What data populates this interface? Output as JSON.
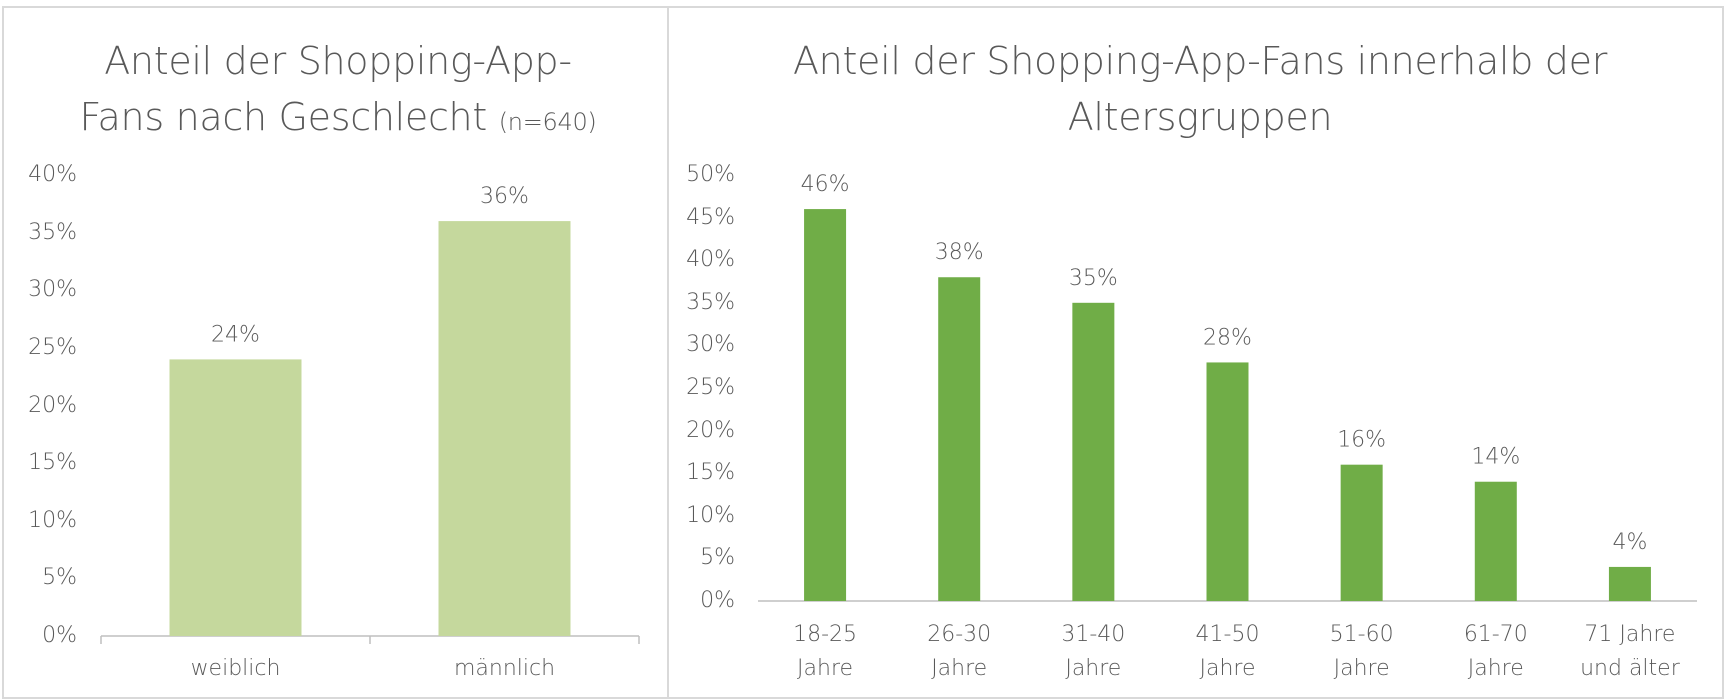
{
  "chart_data": [
    {
      "type": "bar",
      "title": "Anteil der Shopping-App-Fans nach Geschlecht",
      "note": "(n=640)",
      "categories": [
        "weiblich",
        "männlich"
      ],
      "values": [
        24,
        36
      ],
      "value_labels": [
        "24%",
        "36%"
      ],
      "color": "#c5d89d",
      "ylim": [
        0,
        40
      ],
      "yticks": [
        {
          "value": 0,
          "label": "0%"
        },
        {
          "value": 5,
          "label": "5%"
        },
        {
          "value": 10,
          "label": "10%"
        },
        {
          "value": 15,
          "label": "15%"
        },
        {
          "value": 20,
          "label": "20%"
        },
        {
          "value": 25,
          "label": "25%"
        },
        {
          "value": 30,
          "label": "30%"
        },
        {
          "value": 35,
          "label": "35%"
        },
        {
          "value": 40,
          "label": "40%"
        }
      ],
      "grid": false
    },
    {
      "type": "bar",
      "title": "Anteil der Shopping-App-Fans innerhalb der Altersgruppen",
      "categories": [
        "18-25 Jahre",
        "26-30 Jahre",
        "31-40 Jahre",
        "41-50 Jahre",
        "51-60 Jahre",
        "61-70 Jahre",
        "71 Jahre und älter"
      ],
      "values": [
        46,
        38,
        35,
        28,
        16,
        14,
        4
      ],
      "value_labels": [
        "46%",
        "38%",
        "35%",
        "28%",
        "16%",
        "14%",
        "4%"
      ],
      "color": "#70ad47",
      "ylim": [
        0,
        50
      ],
      "yticks": [
        {
          "value": 0,
          "label": "0%"
        },
        {
          "value": 5,
          "label": "5%"
        },
        {
          "value": 10,
          "label": "10%"
        },
        {
          "value": 15,
          "label": "15%"
        },
        {
          "value": 20,
          "label": "20%"
        },
        {
          "value": 25,
          "label": "25%"
        },
        {
          "value": 30,
          "label": "30%"
        },
        {
          "value": 35,
          "label": "35%"
        },
        {
          "value": 40,
          "label": "40%"
        },
        {
          "value": 45,
          "label": "45%"
        },
        {
          "value": 50,
          "label": "50%"
        }
      ],
      "grid": false
    }
  ]
}
